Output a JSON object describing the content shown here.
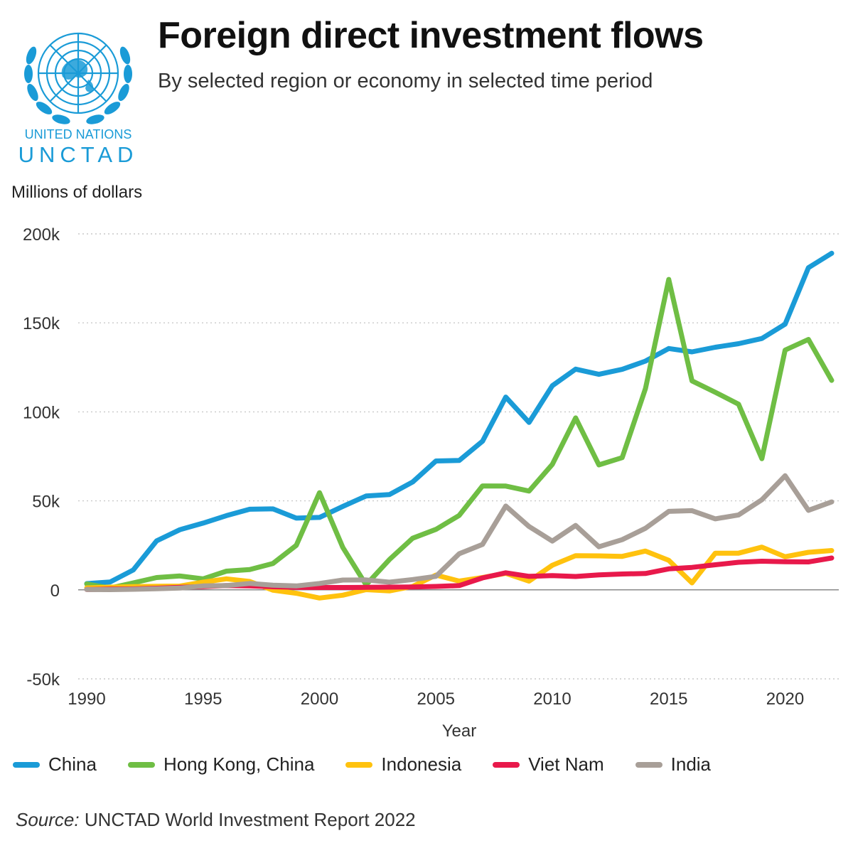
{
  "header": {
    "title": "Foreign direct investment flows",
    "subtitle": "By selected region or economy in selected time period"
  },
  "logo": {
    "line1": "UNITED NATIONS",
    "line2": "UNCTAD",
    "color": "#1a9bd7"
  },
  "source": {
    "label": "Source:",
    "text": "UNCTAD World Investment Report 2022"
  },
  "chart_data": {
    "type": "line",
    "title": "Foreign direct investment flows",
    "subtitle": "By selected region or economy in selected time period",
    "xlabel": "Year",
    "ylabel": "Millions of dollars",
    "xlim": [
      1990,
      2022
    ],
    "ylim": [
      -50000,
      200000
    ],
    "x_ticks": [
      1990,
      1995,
      2000,
      2005,
      2010,
      2015,
      2020
    ],
    "y_ticks": [
      -50000,
      0,
      50000,
      100000,
      150000,
      200000
    ],
    "y_tick_labels": [
      "-50k",
      "0",
      "50k",
      "100k",
      "150k",
      "200k"
    ],
    "grid": "horizontal dotted",
    "legend_position": "bottom",
    "x": [
      1990,
      1991,
      1992,
      1993,
      1994,
      1995,
      1996,
      1997,
      1998,
      1999,
      2000,
      2001,
      2002,
      2003,
      2004,
      2005,
      2006,
      2007,
      2008,
      2009,
      2010,
      2011,
      2012,
      2013,
      2014,
      2015,
      2016,
      2017,
      2018,
      2019,
      2020,
      2021,
      2022
    ],
    "series": [
      {
        "name": "China",
        "color": "#1a9bd7",
        "values": [
          3500,
          4400,
          11200,
          27500,
          33800,
          37500,
          41700,
          45300,
          45500,
          40300,
          40700,
          46900,
          52700,
          53500,
          60600,
          72400,
          72700,
          83500,
          108300,
          94100,
          114700,
          124000,
          121100,
          123900,
          128500,
          135600,
          133700,
          136300,
          138300,
          141200,
          149300,
          181000,
          189100
        ]
      },
      {
        "name": "Hong Kong, China",
        "color": "#6fbe44",
        "values": [
          3300,
          1000,
          3900,
          6900,
          7800,
          6200,
          10500,
          11400,
          14800,
          25000,
          54600,
          23800,
          2800,
          17000,
          29000,
          34000,
          41800,
          58400,
          58300,
          55500,
          70500,
          96600,
          70200,
          74300,
          113000,
          174400,
          117400,
          111000,
          104300,
          73700,
          134700,
          140700,
          117700
        ]
      },
      {
        "name": "Indonesia",
        "color": "#ffc20e",
        "values": [
          1100,
          1500,
          1800,
          2000,
          2100,
          4300,
          6200,
          4700,
          -200,
          -1900,
          -4600,
          -3000,
          100,
          -600,
          1900,
          8300,
          4900,
          6900,
          9300,
          4900,
          13800,
          19200,
          19100,
          18800,
          21800,
          16600,
          3900,
          20600,
          20600,
          24000,
          18600,
          21100,
          22100
        ]
      },
      {
        "name": "Viet Nam",
        "color": "#e8194b",
        "values": [
          200,
          400,
          500,
          900,
          1400,
          1800,
          2400,
          2200,
          1700,
          1400,
          1300,
          1300,
          1400,
          1500,
          1600,
          1900,
          2400,
          6700,
          9600,
          7600,
          8000,
          7500,
          8400,
          8900,
          9200,
          11800,
          12600,
          14100,
          15500,
          16100,
          15800,
          15700,
          17900
        ]
      },
      {
        "name": "India",
        "color": "#a89f98",
        "values": [
          200,
          100,
          300,
          600,
          1000,
          2200,
          2400,
          3600,
          2600,
          2200,
          3600,
          5500,
          5600,
          4300,
          5800,
          7600,
          20300,
          25500,
          47100,
          35600,
          27400,
          36200,
          24200,
          28200,
          34600,
          44100,
          44500,
          39900,
          42100,
          50600,
          64100,
          44700,
          49400
        ]
      }
    ]
  }
}
